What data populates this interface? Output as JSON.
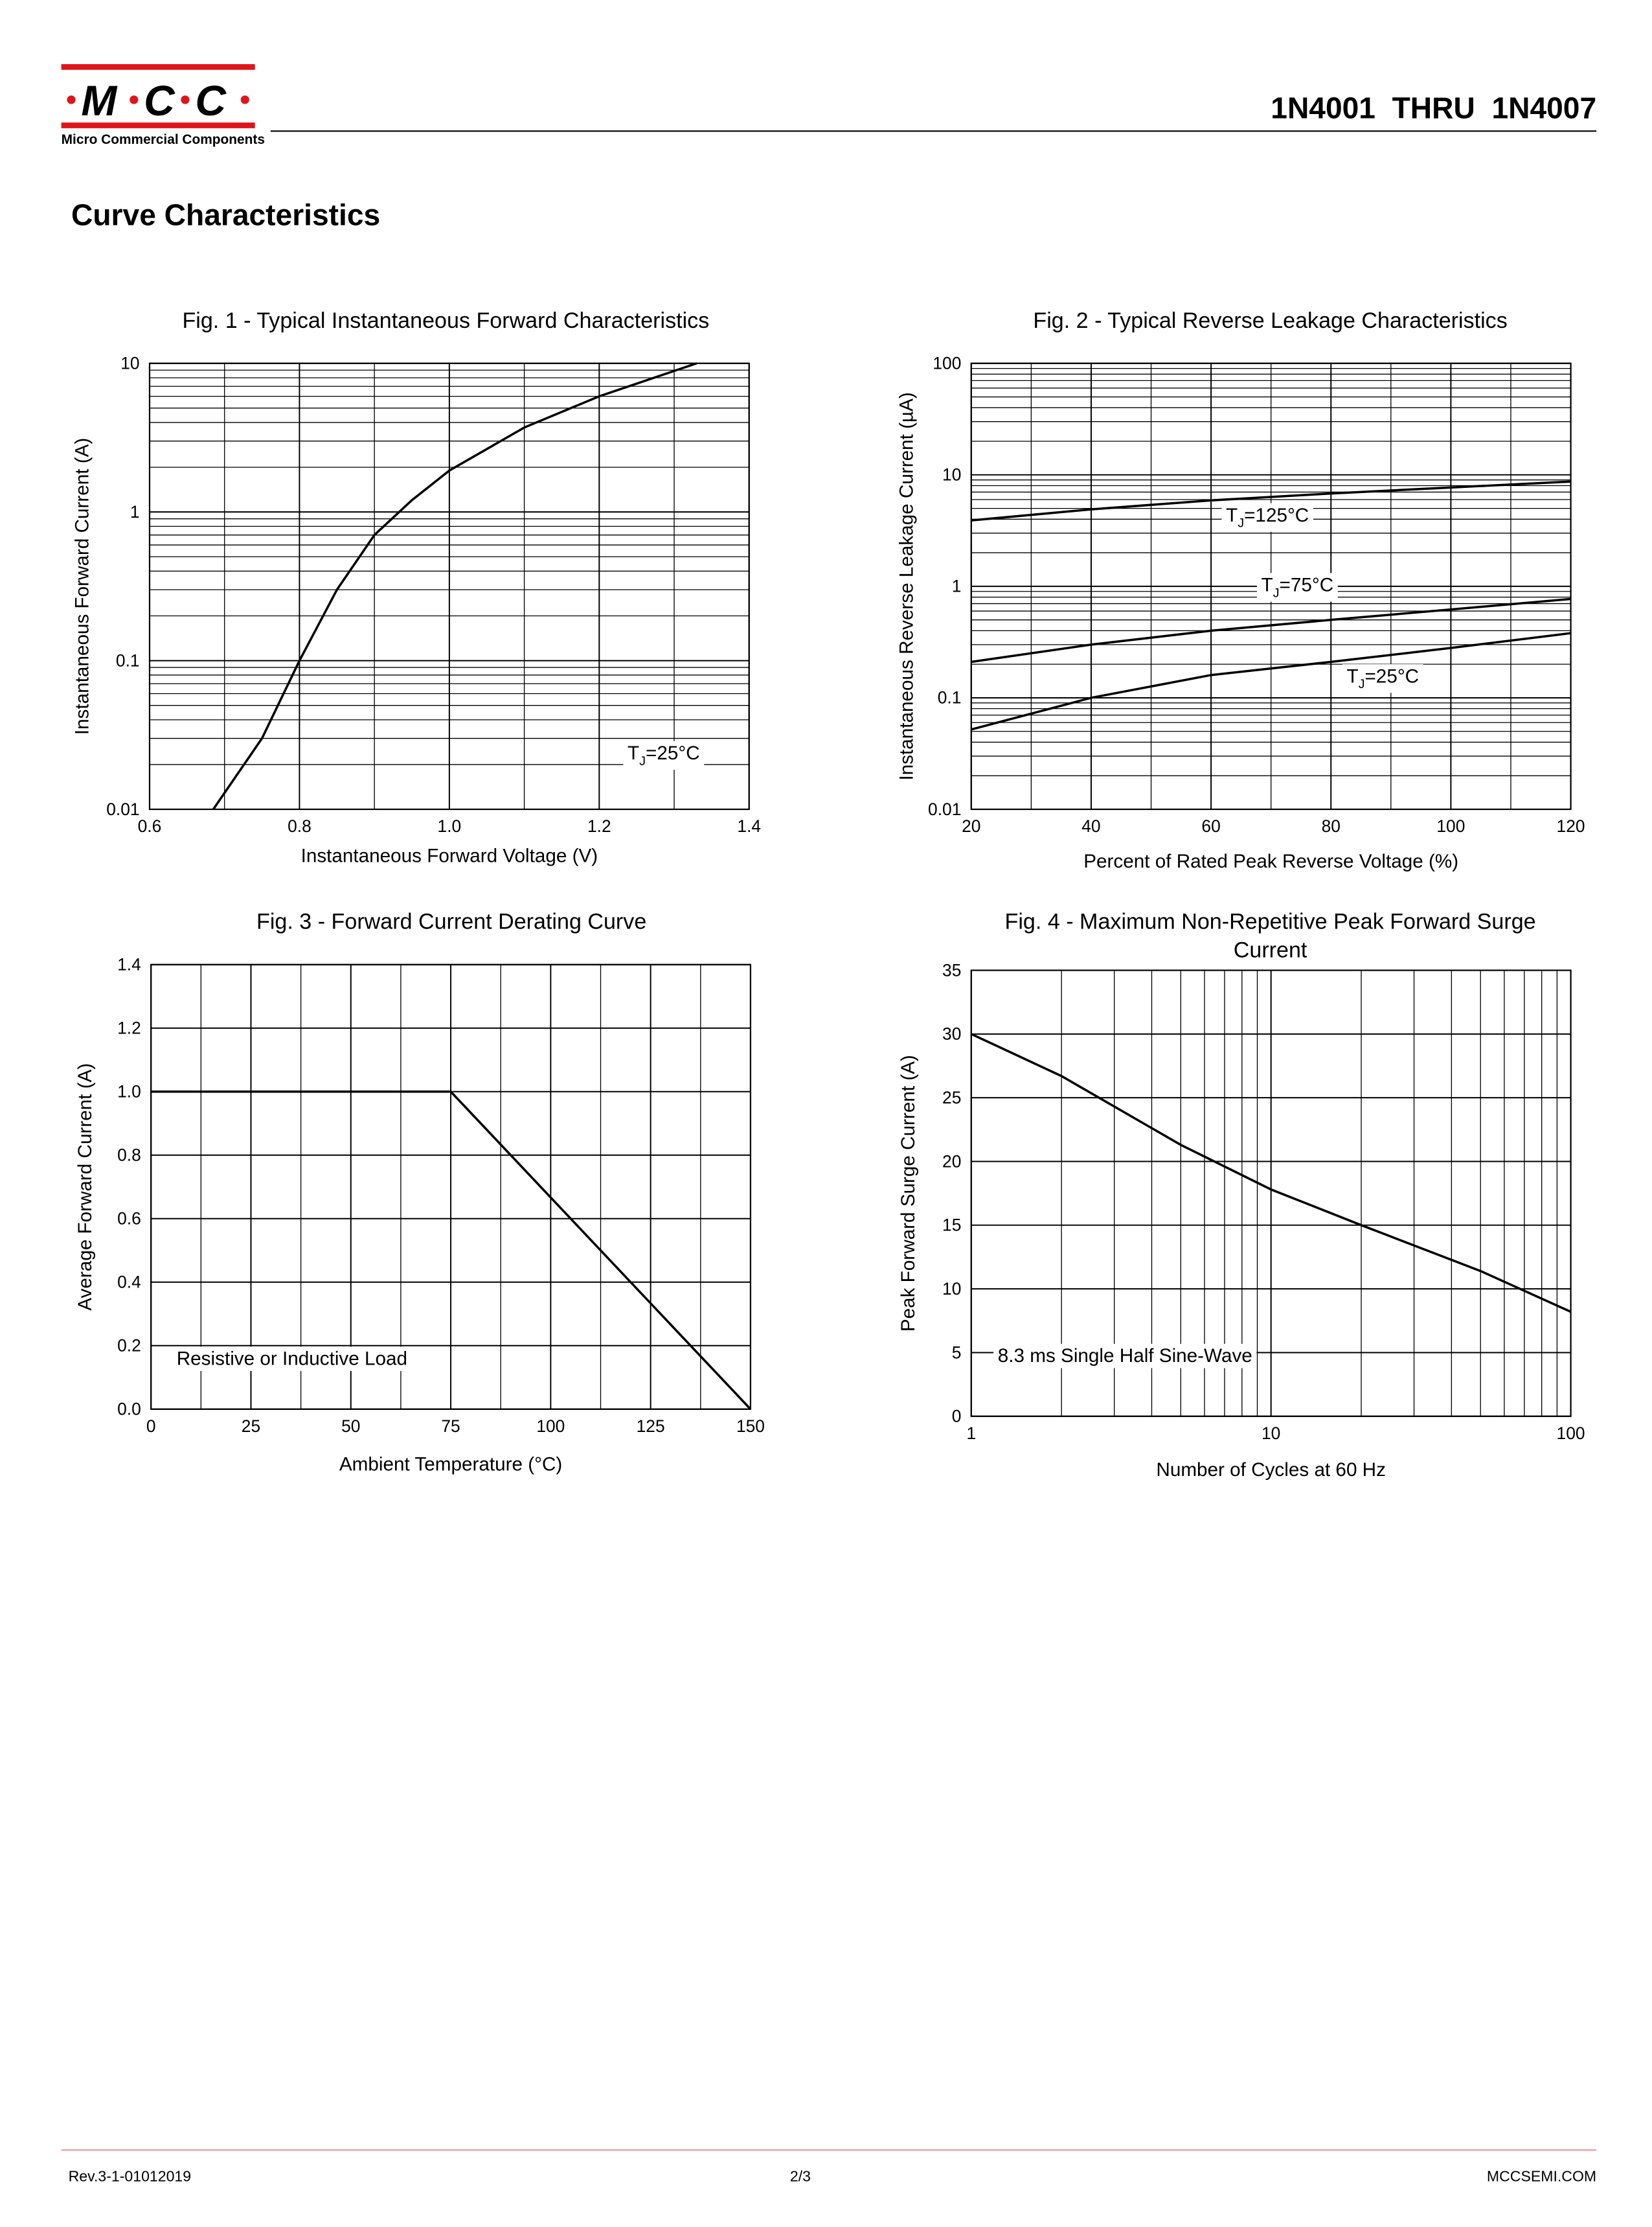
{
  "header": {
    "logo": [
      "M",
      "C",
      "C"
    ],
    "logo_subtitle": "Micro Commercial Components",
    "part": "1N4001  THRU  1N4007"
  },
  "section_title": "Curve Characteristics",
  "chart_data": [
    {
      "type": "line",
      "title": [
        "Fig. 1 - Typical Instantaneous Forward Characteristics"
      ],
      "xlabel": "Instantaneous Forward Voltage (V)",
      "ylabel": "Instantaneous Forward Current (A)",
      "xscale": "linear",
      "yscale": "log",
      "grid": true,
      "xlim": [
        0.6,
        1.4
      ],
      "xticks": [
        0.6,
        0.8,
        {
          "value": 1,
          "label": "1.0"
        },
        1.2,
        1.4
      ],
      "ylim": [
        0.01,
        10
      ],
      "yticks": [
        0.01,
        0.1,
        1,
        10
      ],
      "series": [
        {
          "color": "#000000",
          "x": [
            0.685,
            0.75,
            0.8,
            0.85,
            0.9,
            0.95,
            1.0,
            1.1,
            1.2,
            1.33
          ],
          "values": [
            0.01,
            0.03,
            0.1,
            0.3,
            0.7,
            1.2,
            1.9,
            3.7,
            6,
            10
          ]
        }
      ],
      "annotations": [
        [
          "T",
          "J",
          "=25°C"
        ]
      ]
    },
    {
      "type": "line",
      "title": [
        "Fig. 2 - Typical Reverse Leakage Characteristics"
      ],
      "xlabel": "Percent of Rated Peak Reverse Voltage (%)",
      "ylabel": "Instantaneous Reverse Leakage Current (µA)",
      "xscale": "linear",
      "yscale": "log",
      "grid": true,
      "xlim": [
        20,
        120
      ],
      "xticks": [
        20,
        40,
        60,
        80,
        100,
        120
      ],
      "ylim": [
        0.01,
        100
      ],
      "yticks": [
        0.01,
        0.1,
        1,
        10,
        100
      ],
      "series": [
        {
          "label": [
            "T",
            "J",
            "=125°C"
          ],
          "color": "#000000",
          "x": [
            20,
            40,
            60,
            80,
            100,
            120
          ],
          "values": [
            3.9,
            4.9,
            5.9,
            6.8,
            7.7,
            8.7
          ]
        },
        {
          "label": [
            "T",
            "J",
            "=75°C"
          ],
          "color": "#000000",
          "x": [
            20,
            40,
            60,
            80,
            100,
            120
          ],
          "values": [
            0.21,
            0.3,
            0.4,
            0.5,
            0.62,
            0.77
          ]
        },
        {
          "label": [
            "T",
            "J",
            "=25°C"
          ],
          "color": "#000000",
          "x": [
            20,
            40,
            60,
            80,
            100,
            120
          ],
          "values": [
            0.052,
            0.1,
            0.16,
            0.21,
            0.28,
            0.38
          ]
        }
      ]
    },
    {
      "type": "line",
      "title": [
        "Fig. 3 - Forward Current Derating Curve"
      ],
      "xlabel": "Ambient Temperature (°C)",
      "ylabel": "Average Forward Current (A)",
      "xscale": "linear",
      "yscale": "linear",
      "grid": true,
      "xlim": [
        0,
        150
      ],
      "xticks": [
        0,
        25,
        50,
        75,
        100,
        125,
        150
      ],
      "ylim": [
        0,
        1.4
      ],
      "yticks": [
        {
          "value": 0,
          "label": "0.0"
        },
        0.2,
        0.4,
        0.6,
        0.8,
        {
          "value": 1,
          "label": "1.0"
        },
        1.2,
        1.4
      ],
      "series": [
        {
          "color": "#000000",
          "x": [
            0,
            75,
            150
          ],
          "values": [
            1,
            1,
            0
          ]
        }
      ],
      "annotations": [
        [
          "Resistive or Inductive Load"
        ]
      ]
    },
    {
      "type": "line",
      "title": [
        "Fig. 4 - Maximum Non-Repetitive Peak Forward Surge",
        "Current"
      ],
      "xlabel": "Number of Cycles at 60 Hz",
      "ylabel": "Peak Forward Surge Current (A)",
      "xscale": "log",
      "yscale": "linear",
      "grid": true,
      "xlim": [
        1,
        100
      ],
      "xticks": [
        1,
        10,
        100
      ],
      "ylim": [
        0,
        35
      ],
      "yticks": [
        0,
        5,
        10,
        15,
        20,
        25,
        30,
        35
      ],
      "series": [
        {
          "color": "#000000",
          "x": [
            1,
            2,
            5,
            10,
            20,
            50,
            100
          ],
          "values": [
            30,
            26.7,
            21.3,
            17.8,
            15,
            11.4,
            8.2
          ]
        }
      ],
      "annotations": [
        [
          "8.3 ms Single Half Sine-Wave"
        ]
      ]
    }
  ],
  "footer": {
    "revision": "Rev.3-1-01012019",
    "page": "2/3",
    "site": "MCCSEMI.COM"
  }
}
